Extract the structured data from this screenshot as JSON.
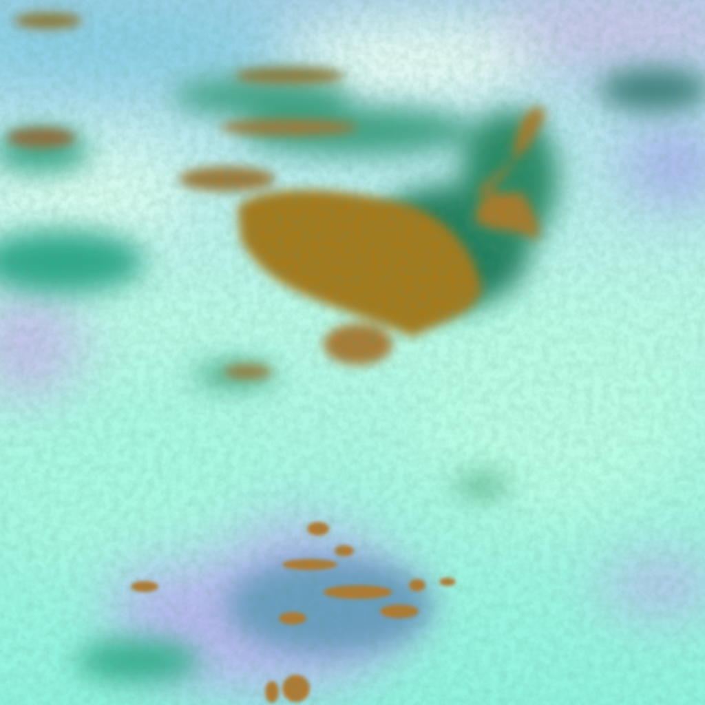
{
  "image": {
    "kind": "false-color satellite cloud imagery",
    "palette": {
      "clear_background": "#8ff5df",
      "bright_cloud": "#d9fbef",
      "lavender_haze": "#b7b9ee",
      "sky_blue_top": "#8fcfe8",
      "brown_cloud": "#a47a22",
      "dark_green_fringe": "#1f8a6a",
      "teal_cloud": "#2fb48f"
    }
  }
}
